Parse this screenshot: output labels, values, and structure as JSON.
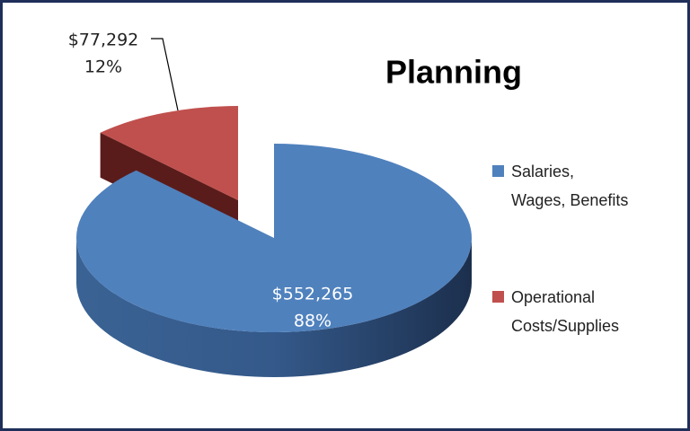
{
  "chart_data": {
    "type": "pie",
    "title": "Planning",
    "categories": [
      "Salaries, Wages, Benefits",
      "Operational Costs/Supplies"
    ],
    "values": [
      552265,
      77292
    ],
    "value_labels": [
      "$552,265",
      "$77,292"
    ],
    "percent_labels": [
      "88%",
      "12%"
    ],
    "colors": [
      "#4f81bd",
      "#c0504d"
    ],
    "legend": "right"
  }
}
